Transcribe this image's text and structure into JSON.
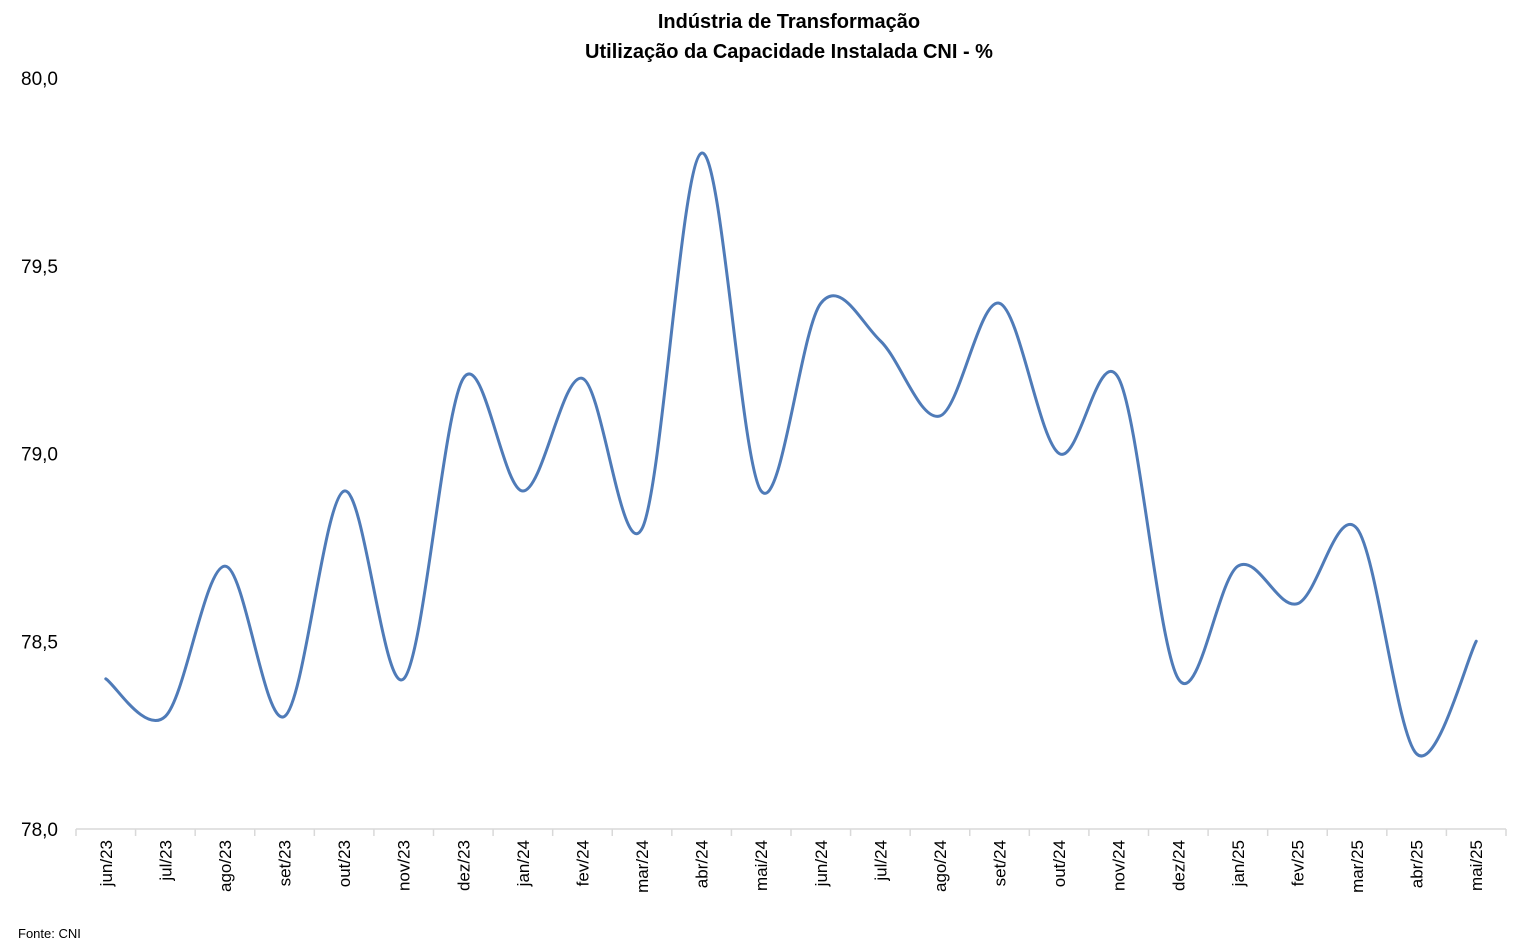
{
  "chart_data": {
    "type": "line",
    "title": "Indústria de Transformação",
    "subtitle": "Utilização da Capacidade Instalada CNI - %",
    "xlabel": "",
    "ylabel": "",
    "ylim": [
      78.0,
      80.0
    ],
    "yticks": [
      "78,0",
      "78,5",
      "79,0",
      "79,5",
      "80,0"
    ],
    "yticks_values": [
      78.0,
      78.5,
      79.0,
      79.5,
      80.0
    ],
    "categories": [
      "jun/23",
      "jul/23",
      "ago/23",
      "set/23",
      "out/23",
      "nov/23",
      "dez/23",
      "jan/24",
      "fev/24",
      "mar/24",
      "abr/24",
      "mai/24",
      "jun/24",
      "jul/24",
      "ago/24",
      "set/24",
      "out/24",
      "nov/24",
      "dez/24",
      "jan/25",
      "fev/25",
      "mar/25",
      "abr/25",
      "mai/25"
    ],
    "series": [
      {
        "values": [
          78.4,
          78.3,
          78.7,
          78.3,
          78.9,
          78.4,
          79.2,
          78.9,
          79.2,
          78.8,
          79.8,
          78.9,
          79.4,
          79.3,
          79.1,
          79.4,
          79.0,
          79.2,
          78.4,
          78.7,
          78.6,
          78.8,
          78.2,
          78.5
        ]
      }
    ],
    "line_color": "#4F7BB8",
    "grid": false,
    "legend": "none"
  },
  "source_note": "Fonte: CNI"
}
